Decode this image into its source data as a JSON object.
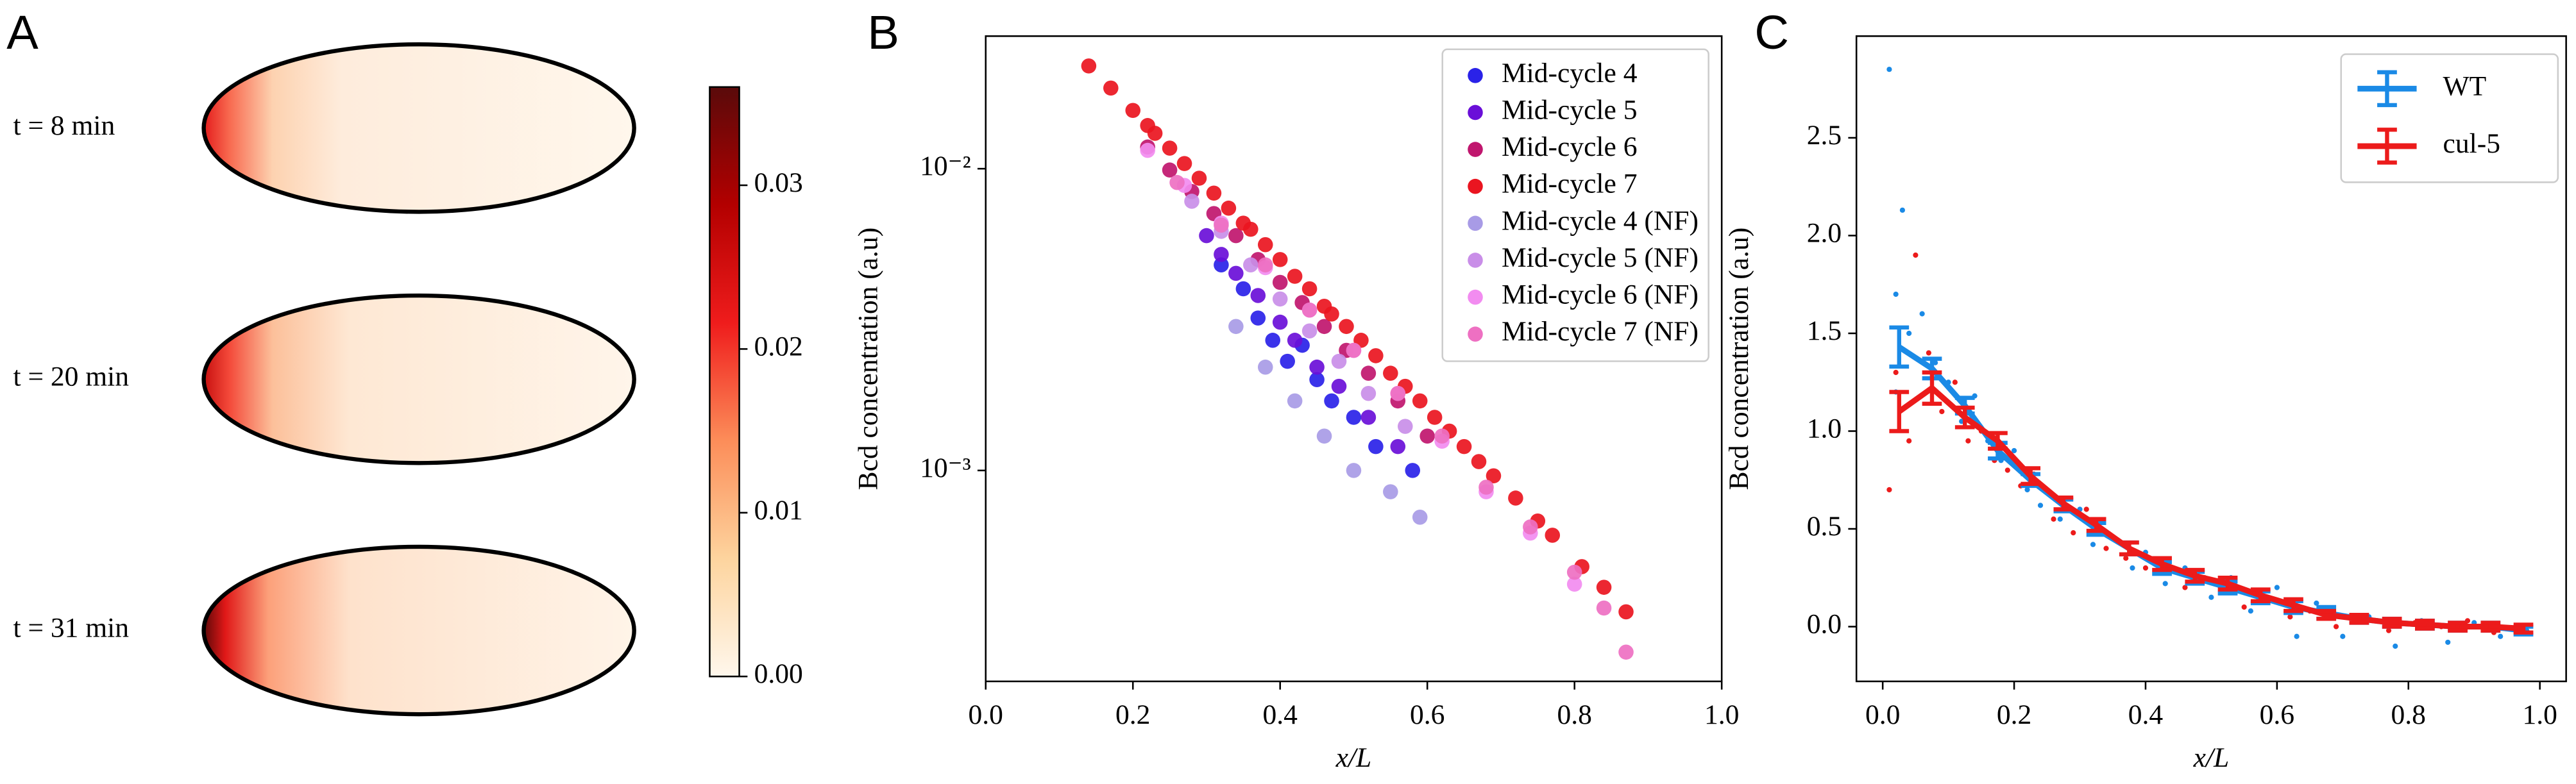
{
  "chart_data": [
    {
      "type": "heatmap",
      "panel": "A",
      "labels": [
        "t = 8 min",
        "t = 20 min",
        "t = 31 min"
      ],
      "colorbar": {
        "lim": [
          0,
          0.036
        ],
        "ticks": [
          {
            "value": 0,
            "label": "0.00"
          },
          0.01,
          0.02,
          0.03
        ],
        "colors": [
          "#fff7ec",
          "#fdd49e",
          "#fc8d59",
          "#ef1c1c",
          "#b30000",
          "#5a0a0a"
        ]
      }
    },
    {
      "type": "scatter",
      "panel": "B",
      "xlabel": "x/L",
      "ylabel": "Bcd concentration (a.u)",
      "log_y": true,
      "xlim": [
        0,
        1
      ],
      "ylim": [
        0.0002,
        0.0275
      ],
      "xticks": [
        {
          "value": 0,
          "label": "0.0"
        },
        0.2,
        0.4,
        0.6,
        0.8,
        {
          "value": 1,
          "label": "1.0"
        }
      ],
      "yticks": [
        {
          "value": 0.001,
          "label": "10⁻³"
        },
        {
          "value": 0.01,
          "label": "10⁻²"
        }
      ],
      "legend": "upper right",
      "series": [
        {
          "name": "Mid-cycle 4",
          "color": "#2a22e8",
          "x": [
            0.32,
            0.35,
            0.37,
            0.39,
            0.41,
            0.43,
            0.45,
            0.47,
            0.5,
            0.53,
            0.58
          ],
          "values": [
            0.0048,
            0.004,
            0.0032,
            0.0027,
            0.0023,
            0.0026,
            0.002,
            0.0017,
            0.0015,
            0.0012,
            0.001
          ]
        },
        {
          "name": "Mid-cycle 5",
          "color": "#6a0fd8",
          "x": [
            0.3,
            0.32,
            0.34,
            0.37,
            0.4,
            0.42,
            0.45,
            0.48,
            0.52,
            0.56
          ],
          "values": [
            0.006,
            0.0052,
            0.0045,
            0.0038,
            0.0031,
            0.0027,
            0.0022,
            0.0019,
            0.0015,
            0.0012
          ]
        },
        {
          "name": "Mid-cycle 6",
          "color": "#c0166e",
          "x": [
            0.22,
            0.25,
            0.28,
            0.31,
            0.34,
            0.37,
            0.4,
            0.43,
            0.46,
            0.49,
            0.52,
            0.56,
            0.6
          ],
          "values": [
            0.0118,
            0.0099,
            0.0084,
            0.0071,
            0.006,
            0.005,
            0.0042,
            0.0036,
            0.003,
            0.0025,
            0.0021,
            0.0017,
            0.0013
          ]
        },
        {
          "name": "Mid-cycle 7",
          "color": "#ea1520",
          "x": [
            0.14,
            0.17,
            0.2,
            0.22,
            0.23,
            0.25,
            0.27,
            0.29,
            0.31,
            0.33,
            0.35,
            0.36,
            0.38,
            0.4,
            0.42,
            0.44,
            0.46,
            0.47,
            0.49,
            0.51,
            0.53,
            0.55,
            0.57,
            0.59,
            0.61,
            0.63,
            0.65,
            0.67,
            0.69,
            0.72,
            0.75,
            0.77,
            0.81,
            0.84,
            0.87
          ],
          "values": [
            0.0219,
            0.0185,
            0.0156,
            0.0139,
            0.0131,
            0.0117,
            0.0104,
            0.0093,
            0.0083,
            0.0074,
            0.0066,
            0.0063,
            0.0056,
            0.005,
            0.0044,
            0.004,
            0.0035,
            0.0033,
            0.003,
            0.0027,
            0.0024,
            0.0021,
            0.0019,
            0.0017,
            0.0015,
            0.00135,
            0.0012,
            0.00107,
            0.00096,
            0.00081,
            0.00068,
            0.00061,
            0.00048,
            0.00041,
            0.00034
          ]
        },
        {
          "name": "Mid-cycle 4 (NF)",
          "color": "#a89be6",
          "x": [
            0.34,
            0.38,
            0.42,
            0.46,
            0.5,
            0.55,
            0.59
          ],
          "values": [
            0.003,
            0.0022,
            0.0017,
            0.0013,
            0.001,
            0.00085,
            0.0007
          ]
        },
        {
          "name": "Mid-cycle 5 (NF)",
          "color": "#c98ee8",
          "x": [
            0.28,
            0.32,
            0.36,
            0.4,
            0.44,
            0.48,
            0.52,
            0.57
          ],
          "values": [
            0.0078,
            0.0062,
            0.0048,
            0.0037,
            0.0029,
            0.0023,
            0.0018,
            0.0014
          ]
        },
        {
          "name": "Mid-cycle 6 (NF)",
          "color": "#f28cf0",
          "x": [
            0.22,
            0.27,
            0.32,
            0.38,
            0.44,
            0.5,
            0.56,
            0.62,
            0.68,
            0.74,
            0.8
          ],
          "values": [
            0.0115,
            0.0088,
            0.0066,
            0.0047,
            0.0034,
            0.0025,
            0.0018,
            0.00125,
            0.00085,
            0.00062,
            0.00042
          ]
        },
        {
          "name": "Mid-cycle 7 (NF)",
          "color": "#ee70c2",
          "x": [
            0.26,
            0.32,
            0.38,
            0.44,
            0.5,
            0.56,
            0.62,
            0.68,
            0.74,
            0.8,
            0.84,
            0.87
          ],
          "values": [
            0.009,
            0.0065,
            0.0048,
            0.0034,
            0.0025,
            0.0018,
            0.0013,
            0.00088,
            0.00065,
            0.00046,
            0.00035,
            0.00025
          ]
        }
      ]
    },
    {
      "type": "errorline",
      "panel": "C",
      "xlabel": "x/L",
      "ylabel": "Bcd concentration (a.u)",
      "xlim": [
        -0.04,
        1.04
      ],
      "ylim": [
        -0.28,
        3.02
      ],
      "xticks": [
        {
          "value": 0,
          "label": "0.0"
        },
        0.2,
        0.4,
        0.6,
        0.8,
        {
          "value": 1,
          "label": "1.0"
        }
      ],
      "yticks": [
        {
          "value": 0,
          "label": "0.0"
        },
        0.5,
        {
          "value": 1,
          "label": "1.0"
        },
        1.5,
        {
          "value": 2,
          "label": "2.0"
        },
        2.5
      ],
      "legend": "upper right",
      "x": [
        0.025,
        0.075,
        0.125,
        0.175,
        0.225,
        0.275,
        0.325,
        0.375,
        0.425,
        0.475,
        0.525,
        0.575,
        0.625,
        0.675,
        0.725,
        0.775,
        0.825,
        0.875,
        0.925,
        0.975
      ],
      "series": [
        {
          "name": "WT",
          "color": "#1a8ae6",
          "values": [
            1.43,
            1.32,
            1.13,
            0.9,
            0.75,
            0.62,
            0.5,
            0.4,
            0.3,
            0.25,
            0.2,
            0.15,
            0.1,
            0.07,
            0.04,
            0.02,
            0.01,
            0,
            0,
            -0.02
          ],
          "errors": [
            0.1,
            0.05,
            0.04,
            0.04,
            0.03,
            0.03,
            0.03,
            0.03,
            0.03,
            0.03,
            0.03,
            0.03,
            0.03,
            0.03,
            0.02,
            0.02,
            0.02,
            0.02,
            0.02,
            0.02
          ],
          "points_x": [
            0.01,
            0.02,
            0.03,
            0.02,
            0.04,
            0.06,
            0.08,
            0.1,
            0.12,
            0.14,
            0.16,
            0.18,
            0.2,
            0.22,
            0.24,
            0.27,
            0.3,
            0.32,
            0.35,
            0.38,
            0.4,
            0.43,
            0.46,
            0.5,
            0.53,
            0.56,
            0.6,
            0.63,
            0.66,
            0.7,
            0.74,
            0.78,
            0.82,
            0.86,
            0.9,
            0.94,
            0.98
          ],
          "points_y": [
            2.85,
            1.7,
            2.13,
            1.2,
            1.5,
            1.6,
            1.35,
            1.25,
            1.05,
            1.18,
            0.95,
            0.85,
            0.9,
            0.7,
            0.62,
            0.55,
            0.6,
            0.42,
            0.45,
            0.3,
            0.38,
            0.22,
            0.3,
            0.15,
            0.25,
            0.08,
            0.2,
            -0.05,
            0.12,
            -0.05,
            0.05,
            -0.1,
            0.03,
            -0.08,
            0.02,
            -0.05,
            -0.02
          ]
        },
        {
          "name": "cul-5",
          "color": "#ec1b1b",
          "values": [
            1.1,
            1.22,
            1.07,
            0.95,
            0.77,
            0.63,
            0.52,
            0.4,
            0.32,
            0.26,
            0.22,
            0.16,
            0.11,
            0.06,
            0.04,
            0.02,
            0.01,
            0,
            0,
            -0.01
          ],
          "errors": [
            0.1,
            0.08,
            0.05,
            0.04,
            0.04,
            0.03,
            0.03,
            0.03,
            0.03,
            0.03,
            0.03,
            0.03,
            0.03,
            0.02,
            0.02,
            0.02,
            0.02,
            0.02,
            0.02,
            0.02
          ],
          "points_x": [
            0.01,
            0.02,
            0.04,
            0.05,
            0.07,
            0.09,
            0.11,
            0.13,
            0.15,
            0.17,
            0.19,
            0.21,
            0.23,
            0.26,
            0.29,
            0.31,
            0.34,
            0.37,
            0.4,
            0.43,
            0.46,
            0.49,
            0.52,
            0.55,
            0.58,
            0.62,
            0.65,
            0.69,
            0.73,
            0.77,
            0.81,
            0.85,
            0.89,
            0.93,
            0.97
          ],
          "points_y": [
            0.7,
            1.3,
            0.95,
            1.9,
            1.4,
            1.1,
            1.25,
            0.95,
            1,
            0.85,
            0.8,
            0.72,
            0.78,
            0.55,
            0.48,
            0.6,
            0.4,
            0.35,
            0.3,
            0.28,
            0.2,
            0.25,
            0.18,
            0.1,
            0.15,
            0.05,
            0.08,
            0,
            0.04,
            -0.02,
            0.02,
            0,
            0.03,
            -0.03,
            0
          ]
        }
      ]
    }
  ]
}
